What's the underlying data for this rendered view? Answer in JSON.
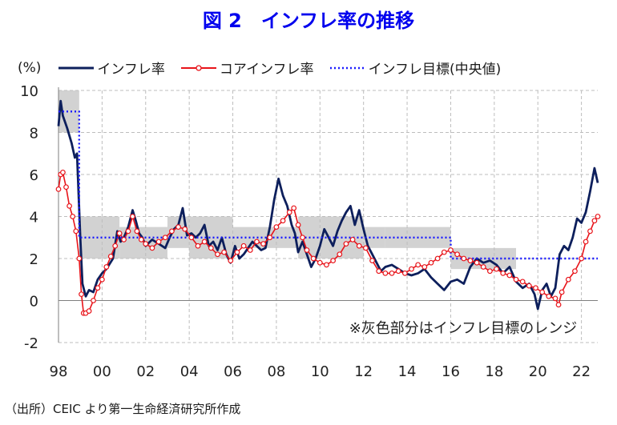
{
  "title": "図 2　インフレ率の推移",
  "source": "（出所）CEIC より第一生命経済研究所作成",
  "chart_data": {
    "type": "line",
    "ylabel": "(%)",
    "ylim": [
      -2,
      10
    ],
    "xlim": [
      1998,
      2022.75
    ],
    "yticks": [
      10,
      8,
      6,
      4,
      2,
      0,
      -2
    ],
    "xticks": [
      "98",
      "00",
      "02",
      "04",
      "06",
      "08",
      "10",
      "12",
      "14",
      "16",
      "18",
      "20",
      "22"
    ],
    "annotation": "※灰色部分はインフレ目標のレンジ",
    "target_band": [
      {
        "from": 1998.0,
        "to": 1998.95,
        "low": 8,
        "high": 10
      },
      {
        "from": 1998.95,
        "to": 2000.8,
        "low": 2,
        "high": 4
      },
      {
        "from": 2000.8,
        "to": 2003.0,
        "low": 2,
        "high": 3.5
      },
      {
        "from": 2003.0,
        "to": 2004.0,
        "low": 2.5,
        "high": 4
      },
      {
        "from": 2004.0,
        "to": 2006.0,
        "low": 2,
        "high": 4
      },
      {
        "from": 2006.0,
        "to": 2009.0,
        "low": 2.5,
        "high": 3.5
      },
      {
        "from": 2009.0,
        "to": 2010.0,
        "low": 2,
        "high": 4
      },
      {
        "from": 2010.0,
        "to": 2012.0,
        "low": 2,
        "high": 4
      },
      {
        "from": 2012.0,
        "to": 2013.0,
        "low": 2.5,
        "high": 3.5
      },
      {
        "from": 2013.0,
        "to": 2016.0,
        "low": 2.5,
        "high": 3.5
      },
      {
        "from": 2016.0,
        "to": 2019.0,
        "low": 1.5,
        "high": 2.5
      }
    ],
    "series": [
      {
        "name": "インフレ率",
        "color": "#0d1f5c",
        "style": "solid",
        "x": [
          1998.0,
          1998.1,
          1998.2,
          1998.4,
          1998.6,
          1998.75,
          1998.85,
          1999.0,
          1999.1,
          1999.25,
          1999.4,
          1999.6,
          1999.8,
          2000.0,
          2000.2,
          2000.5,
          2000.7,
          2000.85,
          2001.0,
          2001.2,
          2001.4,
          2001.55,
          2001.7,
          2001.85,
          2002.0,
          2002.3,
          2002.6,
          2002.9,
          2003.1,
          2003.3,
          2003.5,
          2003.7,
          2003.9,
          2004.1,
          2004.3,
          2004.5,
          2004.7,
          2004.9,
          2005.1,
          2005.3,
          2005.5,
          2005.7,
          2005.9,
          2006.1,
          2006.3,
          2006.5,
          2006.7,
          2006.9,
          2007.1,
          2007.3,
          2007.5,
          2007.7,
          2007.9,
          2008.1,
          2008.3,
          2008.5,
          2008.7,
          2008.85,
          2009.0,
          2009.2,
          2009.4,
          2009.6,
          2009.8,
          2010.0,
          2010.2,
          2010.4,
          2010.6,
          2010.8,
          2011.0,
          2011.2,
          2011.4,
          2011.6,
          2011.8,
          2012.0,
          2012.2,
          2012.4,
          2012.6,
          2012.8,
          2013.0,
          2013.3,
          2013.6,
          2013.9,
          2014.2,
          2014.5,
          2014.8,
          2015.1,
          2015.4,
          2015.7,
          2016.0,
          2016.3,
          2016.6,
          2016.9,
          2017.2,
          2017.5,
          2017.8,
          2018.1,
          2018.4,
          2018.7,
          2019.0,
          2019.3,
          2019.6,
          2019.85,
          2020.0,
          2020.2,
          2020.4,
          2020.6,
          2020.8,
          2021.0,
          2021.2,
          2021.4,
          2021.6,
          2021.8,
          2022.0,
          2022.2,
          2022.4,
          2022.6,
          2022.75
        ],
        "values": [
          8.3,
          9.5,
          8.8,
          8.2,
          7.5,
          6.8,
          7.0,
          3.0,
          0.8,
          0.2,
          0.5,
          0.4,
          1.0,
          1.3,
          1.5,
          2.0,
          3.3,
          2.8,
          3.0,
          3.5,
          4.3,
          3.8,
          3.2,
          3.0,
          2.6,
          2.9,
          2.7,
          2.5,
          3.0,
          3.4,
          3.6,
          4.4,
          3.1,
          3.2,
          3.0,
          3.2,
          3.6,
          2.6,
          2.8,
          2.4,
          3.0,
          2.2,
          1.8,
          2.6,
          2.0,
          2.2,
          2.5,
          2.8,
          2.6,
          2.4,
          2.5,
          3.5,
          4.8,
          5.8,
          5.0,
          4.5,
          3.6,
          3.2,
          2.3,
          2.8,
          2.2,
          1.6,
          2.0,
          2.6,
          3.4,
          3.0,
          2.6,
          3.3,
          3.8,
          4.2,
          4.5,
          3.6,
          4.3,
          3.4,
          2.6,
          2.2,
          1.8,
          1.4,
          1.6,
          1.7,
          1.5,
          1.3,
          1.2,
          1.3,
          1.5,
          1.1,
          0.8,
          0.5,
          0.9,
          1.0,
          0.8,
          1.6,
          2.0,
          1.8,
          1.9,
          1.7,
          1.3,
          1.6,
          0.9,
          0.6,
          0.8,
          0.3,
          -0.4,
          0.5,
          0.8,
          0.2,
          0.6,
          2.2,
          2.6,
          2.4,
          3.0,
          3.9,
          3.7,
          4.2,
          5.2,
          6.3,
          5.6
        ]
      },
      {
        "name": "コアインフレ率",
        "color": "#e8141a",
        "style": "marker",
        "x": [
          1998.0,
          1998.1,
          1998.2,
          1998.35,
          1998.5,
          1998.65,
          1998.8,
          1998.95,
          1999.05,
          1999.15,
          1999.25,
          1999.4,
          1999.6,
          1999.8,
          2000.0,
          2000.2,
          2000.4,
          2000.6,
          2000.8,
          2001.0,
          2001.2,
          2001.4,
          2001.6,
          2001.8,
          2002.0,
          2002.3,
          2002.6,
          2002.9,
          2003.2,
          2003.5,
          2003.8,
          2004.1,
          2004.4,
          2004.7,
          2005.0,
          2005.3,
          2005.6,
          2005.9,
          2006.2,
          2006.5,
          2006.8,
          2007.1,
          2007.4,
          2007.7,
          2008.0,
          2008.3,
          2008.6,
          2008.8,
          2009.0,
          2009.2,
          2009.4,
          2009.7,
          2010.0,
          2010.3,
          2010.6,
          2010.9,
          2011.2,
          2011.5,
          2011.8,
          2012.1,
          2012.4,
          2012.7,
          2013.0,
          2013.3,
          2013.6,
          2013.9,
          2014.2,
          2014.5,
          2014.8,
          2015.1,
          2015.4,
          2015.7,
          2016.0,
          2016.3,
          2016.6,
          2016.9,
          2017.2,
          2017.5,
          2017.8,
          2018.1,
          2018.4,
          2018.7,
          2019.0,
          2019.3,
          2019.6,
          2019.9,
          2020.2,
          2020.5,
          2020.8,
          2020.95,
          2021.1,
          2021.4,
          2021.7,
          2022.0,
          2022.2,
          2022.4,
          2022.6,
          2022.75
        ],
        "values": [
          5.3,
          6.0,
          6.1,
          5.4,
          4.5,
          4.0,
          3.3,
          2.0,
          0.3,
          -0.6,
          -0.6,
          -0.5,
          0.0,
          0.6,
          1.0,
          1.6,
          2.1,
          2.6,
          3.2,
          2.9,
          3.3,
          4.0,
          3.3,
          2.9,
          2.7,
          2.5,
          2.8,
          3.0,
          3.3,
          3.5,
          3.4,
          3.0,
          2.6,
          2.8,
          2.5,
          2.2,
          2.3,
          1.9,
          2.3,
          2.6,
          2.4,
          2.8,
          2.7,
          3.0,
          3.5,
          3.8,
          4.2,
          4.4,
          3.6,
          3.0,
          2.4,
          2.0,
          1.8,
          1.7,
          1.9,
          2.2,
          2.7,
          2.9,
          2.6,
          2.5,
          1.9,
          1.4,
          1.3,
          1.3,
          1.4,
          1.3,
          1.5,
          1.7,
          1.6,
          1.8,
          2.0,
          2.3,
          2.4,
          2.2,
          2.0,
          1.9,
          1.8,
          1.6,
          1.4,
          1.5,
          1.3,
          1.2,
          1.0,
          0.9,
          0.7,
          0.6,
          0.4,
          0.2,
          0.1,
          -0.2,
          0.4,
          1.0,
          1.4,
          2.0,
          2.8,
          3.3,
          3.8,
          4.0
        ]
      },
      {
        "name": "インフレ目標(中央値)",
        "color": "#1a1aff",
        "style": "dotted",
        "x": [
          1998.0,
          1998.95,
          1998.95,
          2000.8,
          2000.8,
          2016.0,
          2016.0,
          2022.75
        ],
        "values": [
          9,
          9,
          3,
          3,
          3,
          3,
          2,
          2
        ]
      }
    ]
  }
}
